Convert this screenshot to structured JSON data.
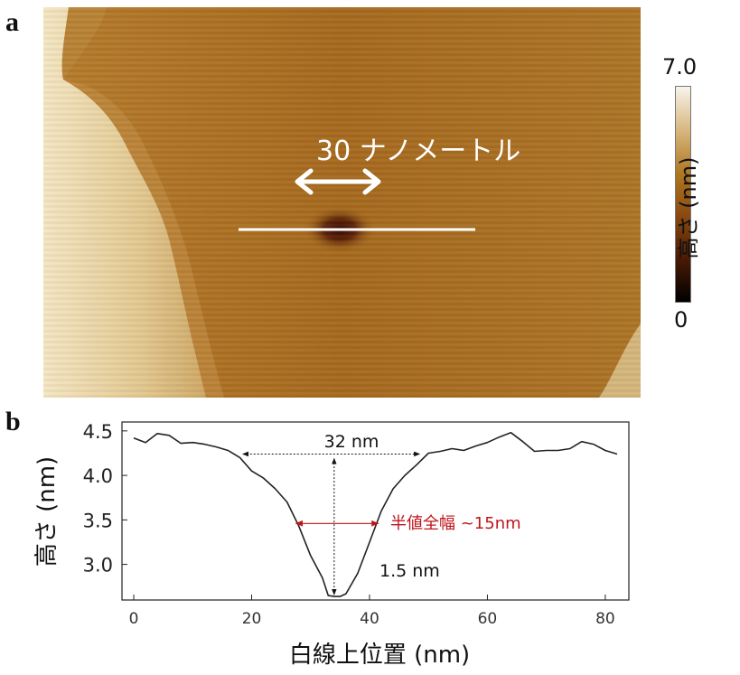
{
  "panel_a": {
    "label": "a",
    "scale_bar_label": "30 ナノメートル",
    "colorbar": {
      "max_label": "7.0",
      "min_label": "0",
      "axis_label": "高さ (nm)",
      "colors": [
        "#000000",
        "#4a1a05",
        "#8a4a10",
        "#b07822",
        "#d8b880",
        "#f8f4ec"
      ]
    }
  },
  "panel_b": {
    "label": "b",
    "chart_data": {
      "type": "line",
      "xlabel": "白線上位置 (nm)",
      "ylabel": "高さ (nm)",
      "xlim": [
        -2,
        84
      ],
      "ylim": [
        2.6,
        4.6
      ],
      "xticks": [
        0,
        20,
        40,
        60,
        80
      ],
      "yticks": [
        3.0,
        3.5,
        4.0,
        4.5
      ],
      "ytick_labels": [
        "3.0",
        "3.5",
        "4.0",
        "4.5"
      ],
      "grid": false,
      "line_color": "#222222",
      "series": [
        {
          "x": [
            0,
            2,
            4,
            6,
            8,
            10,
            12,
            14,
            16,
            18,
            20,
            22,
            24,
            26,
            28,
            30,
            32,
            33,
            34,
            35,
            36,
            38,
            40,
            42,
            44,
            46,
            48,
            50,
            52,
            54,
            56,
            58,
            60,
            62,
            64,
            66,
            68,
            70,
            72,
            74,
            76,
            78,
            80,
            82
          ],
          "y": [
            4.42,
            4.37,
            4.47,
            4.45,
            4.36,
            4.37,
            4.35,
            4.32,
            4.28,
            4.2,
            4.05,
            3.97,
            3.85,
            3.7,
            3.43,
            3.1,
            2.85,
            2.65,
            2.64,
            2.64,
            2.67,
            2.9,
            3.25,
            3.6,
            3.85,
            4.0,
            4.12,
            4.25,
            4.27,
            4.3,
            4.28,
            4.33,
            4.37,
            4.43,
            4.48,
            4.38,
            4.27,
            4.28,
            4.28,
            4.3,
            4.38,
            4.35,
            4.28,
            4.24
          ]
        }
      ],
      "annotations": [
        {
          "text": "32 nm",
          "color": "#111111"
        },
        {
          "text": "半値全幅 ~15nm",
          "color": "#c0151c"
        },
        {
          "text": "1.5 nm",
          "color": "#111111"
        }
      ],
      "width_arrow": {
        "x_from": 18.5,
        "x_to": 48.5,
        "y": 4.24
      },
      "fwhm_arrow": {
        "x_from": 27.5,
        "x_to": 41.5,
        "y": 3.46
      },
      "depth_arrow": {
        "x": 34,
        "y_from": 2.66,
        "y_to": 4.19
      }
    }
  }
}
